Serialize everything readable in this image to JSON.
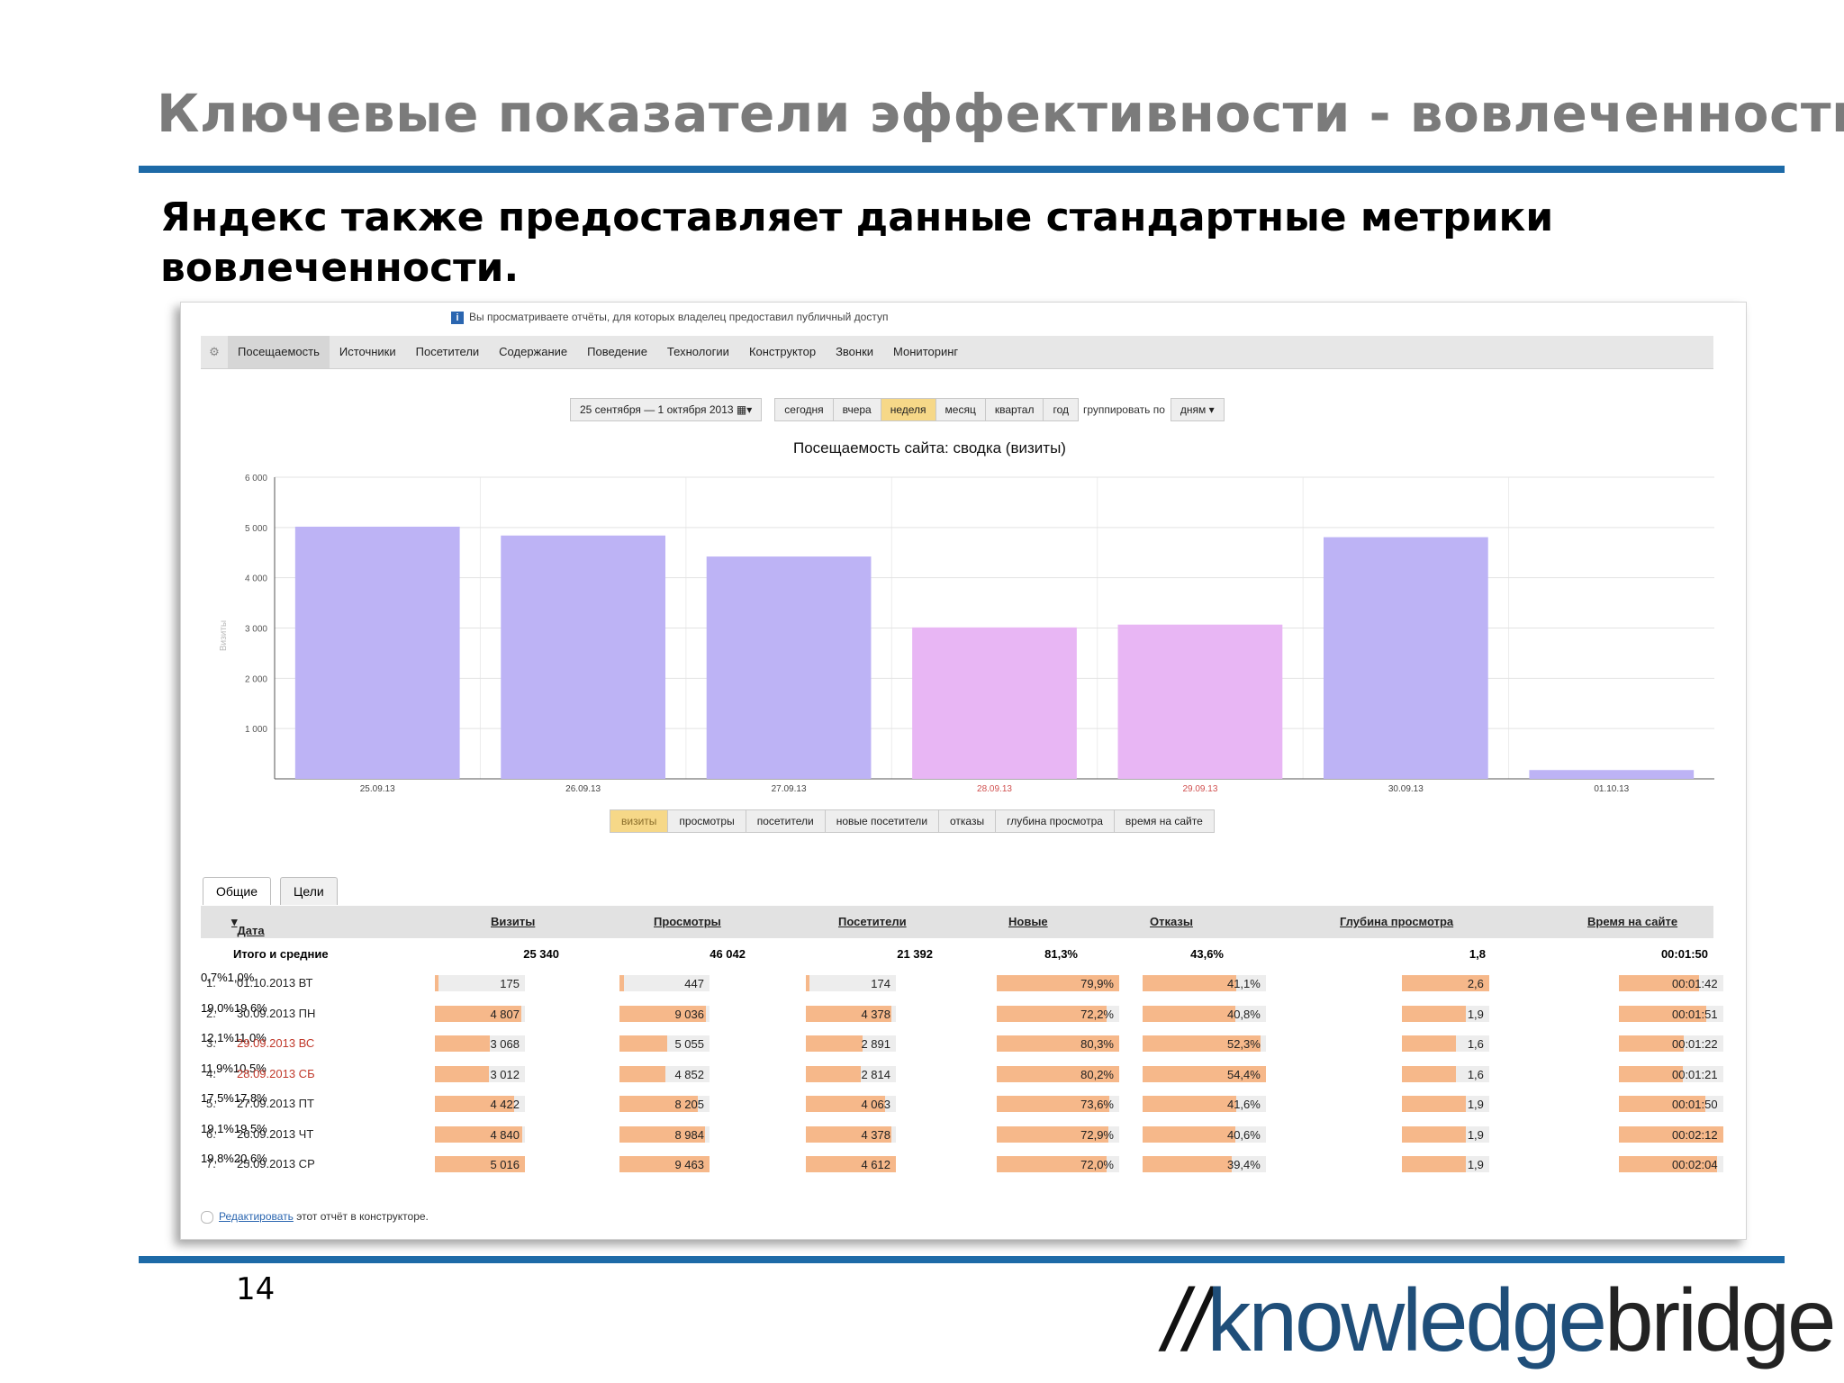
{
  "slide": {
    "title": "Ключевые показатели эффективности - вовлеченность",
    "subtitle": "Яндекс также предоставляет данные стандартные метрики вовлеченности.",
    "page_number": "14",
    "logo": {
      "slashes": "//",
      "part1": "knowledge",
      "part2": "bridge"
    },
    "colors": {
      "title": "#7b7b7b",
      "rule": "#1d6aa7",
      "logo_blue": "#1f4e79"
    }
  },
  "screenshot": {
    "notice": "Вы просматриваете отчёты, для которых владелец предоставил публичный доступ",
    "nav": [
      "Посещаемость",
      "Источники",
      "Посетители",
      "Содержание",
      "Поведение",
      "Технологии",
      "Конструктор",
      "Звонки",
      "Мониторинг"
    ],
    "nav_active": "Посещаемость",
    "date_range": "25 сентября — 1 октября 2013",
    "periods": [
      "сегодня",
      "вчера",
      "неделя",
      "месяц",
      "квартал",
      "год"
    ],
    "period_selected": "неделя",
    "group_label": "группировать по",
    "group_value": "дням",
    "chart_title": "Посещаемость сайта: сводка (визиты)",
    "metric_buttons": [
      "визиты",
      "просмотры",
      "посетители",
      "новые посетители",
      "отказы",
      "глубина просмотра",
      "время на сайте"
    ],
    "metric_selected": "визиты",
    "tabs": [
      "Общие",
      "Цели"
    ],
    "columns": [
      "Дата",
      "Визиты",
      "Просмотры",
      "Посетители",
      "Новые",
      "Отказы",
      "Глубина просмотра",
      "Время на сайте"
    ],
    "totals": {
      "label": "Итого и средние",
      "visits": "25 340",
      "views": "46 042",
      "visitors": "21 392",
      "new": "81,3%",
      "bounce": "43,6%",
      "depth": "1,8",
      "time": "00:01:50"
    },
    "rows": [
      {
        "n": "1.",
        "date": "01.10.2013 ВТ",
        "weekend": false,
        "visits": "175",
        "visits_pct": "0,7%",
        "views": "447",
        "views_pct": "1,0%",
        "visitors": "174",
        "new": "79,9%",
        "bounce": "41,1%",
        "depth": "2,6",
        "time": "00:01:42"
      },
      {
        "n": "2.",
        "date": "30.09.2013 ПН",
        "weekend": false,
        "visits": "4 807",
        "visits_pct": "19,0%",
        "views": "9 036",
        "views_pct": "19,6%",
        "visitors": "4 378",
        "new": "72,2%",
        "bounce": "40,8%",
        "depth": "1,9",
        "time": "00:01:51"
      },
      {
        "n": "3.",
        "date": "29.09.2013 ВС",
        "weekend": true,
        "visits": "3 068",
        "visits_pct": "12,1%",
        "views": "5 055",
        "views_pct": "11,0%",
        "visitors": "2 891",
        "new": "80,3%",
        "bounce": "52,3%",
        "depth": "1,6",
        "time": "00:01:22"
      },
      {
        "n": "4.",
        "date": "28.09.2013 СБ",
        "weekend": true,
        "visits": "3 012",
        "visits_pct": "11,9%",
        "views": "4 852",
        "views_pct": "10,5%",
        "visitors": "2 814",
        "new": "80,2%",
        "bounce": "54,4%",
        "depth": "1,6",
        "time": "00:01:21"
      },
      {
        "n": "5.",
        "date": "27.09.2013 ПТ",
        "weekend": false,
        "visits": "4 422",
        "visits_pct": "17,5%",
        "views": "8 205",
        "views_pct": "17,8%",
        "visitors": "4 063",
        "new": "73,6%",
        "bounce": "41,6%",
        "depth": "1,9",
        "time": "00:01:50"
      },
      {
        "n": "6.",
        "date": "26.09.2013 ЧТ",
        "weekend": false,
        "visits": "4 840",
        "visits_pct": "19,1%",
        "views": "8 984",
        "views_pct": "19,5%",
        "visitors": "4 378",
        "new": "72,9%",
        "bounce": "40,6%",
        "depth": "1,9",
        "time": "00:02:12"
      },
      {
        "n": "7.",
        "date": "25.09.2013 СР",
        "weekend": false,
        "visits": "5 016",
        "visits_pct": "19,8%",
        "views": "9 463",
        "views_pct": "20,6%",
        "visitors": "4 612",
        "new": "72,0%",
        "bounce": "39,4%",
        "depth": "1,9",
        "time": "00:02:04"
      }
    ],
    "fractions": {
      "visits": [
        0.035,
        0.96,
        0.61,
        0.6,
        0.88,
        0.965,
        1.0
      ],
      "views": [
        0.047,
        0.955,
        0.534,
        0.513,
        0.867,
        0.949,
        1.0
      ],
      "visitors": [
        0.038,
        0.949,
        0.627,
        0.61,
        0.881,
        0.949,
        1.0
      ],
      "new": [
        1.0,
        0.9,
        1.0,
        1.0,
        0.92,
        0.91,
        0.9
      ],
      "bounce": [
        0.76,
        0.75,
        0.96,
        1.0,
        0.76,
        0.75,
        0.72
      ],
      "depth": [
        1.0,
        0.73,
        0.62,
        0.62,
        0.73,
        0.73,
        0.73
      ],
      "time": [
        0.77,
        0.84,
        0.62,
        0.61,
        0.83,
        1.0,
        0.94
      ]
    },
    "edit_link": "Редактировать",
    "edit_text": " этот отчёт в конструкторе."
  },
  "chart_data": {
    "type": "bar",
    "title": "Посещаемость сайта: сводка (визиты)",
    "ylabel": "Визиты",
    "categories": [
      "25.09.13",
      "26.09.13",
      "27.09.13",
      "28.09.13",
      "29.09.13",
      "30.09.13",
      "01.10.13"
    ],
    "values": [
      5016,
      4840,
      4422,
      3012,
      3068,
      4807,
      175
    ],
    "weekend": [
      false,
      false,
      false,
      true,
      true,
      false,
      false
    ],
    "yticks": [
      "1 000",
      "2 000",
      "3 000",
      "4 000",
      "5 000",
      "6 000"
    ],
    "ylim": [
      0,
      6000
    ],
    "colors": {
      "weekday": "#bdb3f5",
      "weekend": "#e8b6f4",
      "weekend_label": "#d0504f"
    },
    "grid": true
  }
}
